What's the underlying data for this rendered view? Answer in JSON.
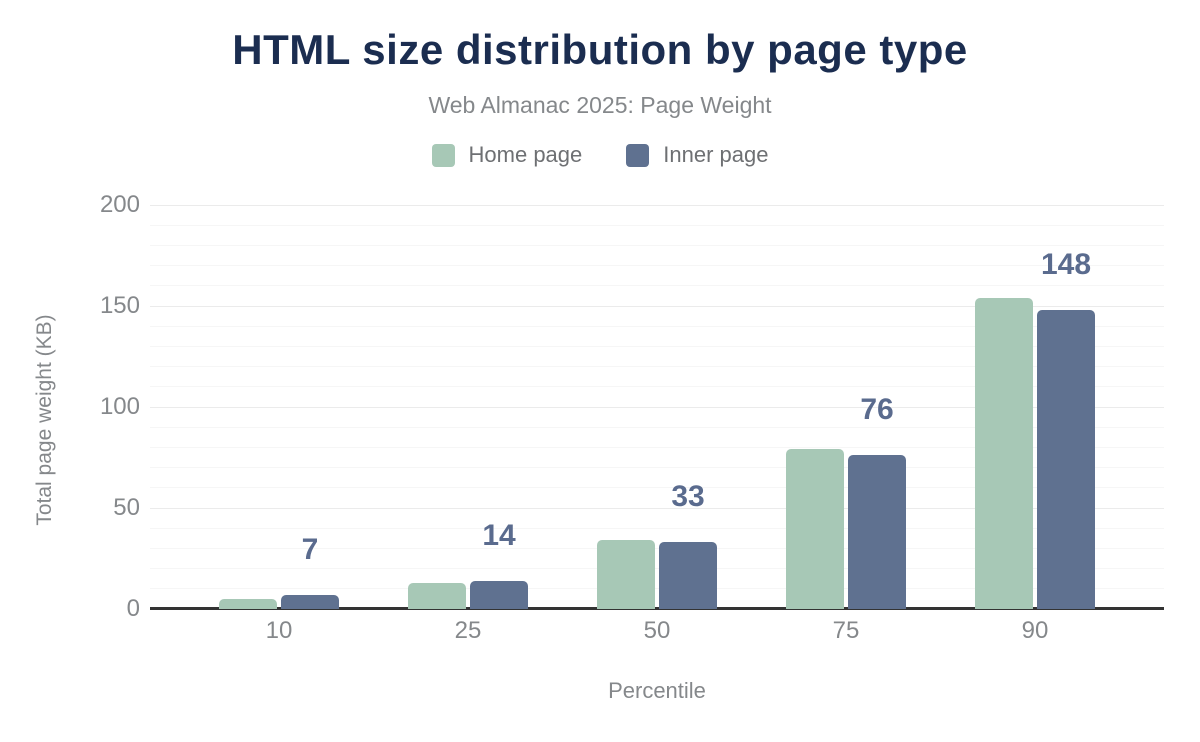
{
  "header": {
    "title": "HTML size distribution by page type",
    "subtitle": "Web Almanac 2025: Page Weight"
  },
  "chart_data": {
    "type": "bar",
    "title": "HTML size distribution by page type",
    "subtitle": "Web Almanac 2025: Page Weight",
    "categories": [
      "10",
      "25",
      "50",
      "75",
      "90"
    ],
    "series": [
      {
        "name": "Home page",
        "color": "#a7c8b6",
        "values": [
          5,
          13,
          34,
          79,
          154
        ],
        "show_labels": false
      },
      {
        "name": "Inner page",
        "color": "#5f7190",
        "values": [
          7,
          14,
          33,
          76,
          148
        ],
        "show_labels": true,
        "labels": [
          "7",
          "14",
          "33",
          "76",
          "148"
        ]
      }
    ],
    "xlabel": "Percentile",
    "ylabel": "Total page weight (KB)",
    "ylim": [
      0,
      200
    ],
    "yticks": [
      "0",
      "50",
      "100",
      "150",
      "200"
    ],
    "minor_grid_step": 10,
    "grid": true,
    "legend_position": "top"
  },
  "colors": {
    "title_text": "#1b2d50",
    "subtitle_text": "#85888b",
    "axis_text": "#85888b",
    "legend_text": "#6e7073",
    "data_label_text": "#5a6b8e",
    "major_grid": "#ebebeb",
    "minor_grid": "#f6f6f6",
    "axis_line": "#333333",
    "background": "#ffffff"
  }
}
